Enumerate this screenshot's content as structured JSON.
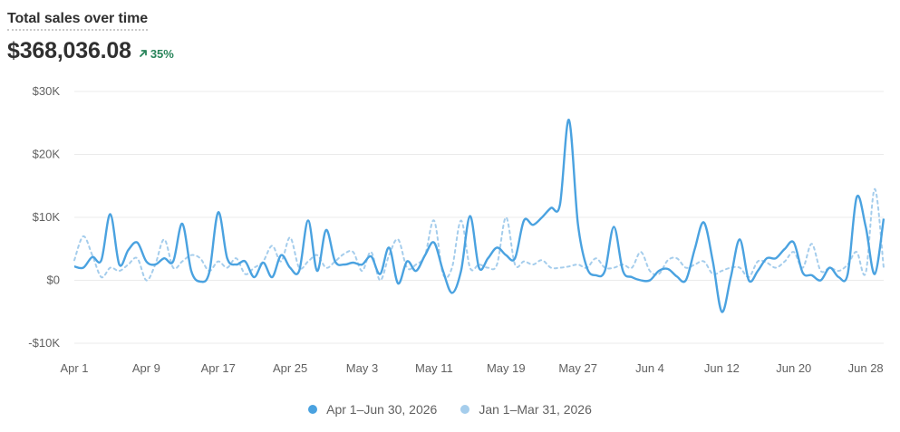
{
  "header": {
    "title": "Total sales over time",
    "total": "$368,036.08",
    "change": "35%",
    "change_icon": "arrow-up-right-icon",
    "change_color": "#29845a"
  },
  "legend": [
    {
      "label": "Apr 1–Jun 30, 2026",
      "color": "#4aa2e0"
    },
    {
      "label": "Jan 1–Mar 31, 2026",
      "color": "#a5cdec"
    }
  ],
  "chart_data": {
    "type": "line",
    "title": "Total sales over time",
    "ylim": [
      -10000,
      30000
    ],
    "y_ticks": [
      -10000,
      0,
      10000,
      20000,
      30000
    ],
    "y_tick_labels": [
      "-$10K",
      "$0",
      "$10K",
      "$20K",
      "$30K"
    ],
    "x_tick_labels": [
      "Apr 1",
      "Apr 9",
      "Apr 17",
      "Apr 25",
      "May 3",
      "May 11",
      "May 19",
      "May 27",
      "Jun 4",
      "Jun 12",
      "Jun 20",
      "Jun 28"
    ],
    "x_tick_index": [
      0,
      8,
      16,
      24,
      32,
      40,
      48,
      56,
      64,
      72,
      80,
      88
    ],
    "grid": true,
    "legend_position": "bottom-center",
    "series": [
      {
        "name": "Apr 1–Jun 30, 2026",
        "style": "solid",
        "color": "#4aa2e0",
        "values": [
          2200,
          2000,
          3700,
          3200,
          10500,
          2500,
          4800,
          6000,
          3000,
          2500,
          3500,
          3000,
          9000,
          1500,
          -200,
          1200,
          10800,
          3500,
          2500,
          3000,
          500,
          2800,
          500,
          4000,
          2000,
          1500,
          9500,
          1500,
          8000,
          3000,
          2500,
          2800,
          2500,
          3800,
          1000,
          5200,
          -500,
          3000,
          1500,
          4000,
          6000,
          1500,
          -2000,
          1500,
          10200,
          2000,
          3500,
          5200,
          4000,
          3500,
          9500,
          8800,
          10000,
          11500,
          12000,
          25500,
          9000,
          2000,
          800,
          1500,
          8500,
          1500,
          500,
          0,
          0,
          1500,
          1800,
          600,
          0,
          5000,
          9200,
          3000,
          -5000,
          500,
          6500,
          0,
          1500,
          3500,
          3500,
          5000,
          6000,
          1200,
          800,
          0,
          2000,
          500,
          1000,
          13200,
          8500,
          1000,
          9800
        ]
      },
      {
        "name": "Jan 1–Mar 31, 2026",
        "style": "dashed",
        "color": "#a5cdec",
        "values": [
          3200,
          7000,
          4000,
          500,
          2000,
          1500,
          2500,
          3500,
          0,
          2500,
          6500,
          2000,
          3000,
          4000,
          3500,
          1500,
          3000,
          2000,
          3500,
          1000,
          2000,
          3000,
          5500,
          3000,
          6800,
          2000,
          3000,
          4000,
          2000,
          3000,
          4200,
          4500,
          1500,
          4500,
          0,
          4000,
          6500,
          2000,
          2500,
          4000,
          9500,
          1000,
          2000,
          9500,
          2000,
          2500,
          2000,
          2500,
          10000,
          2500,
          3000,
          2500,
          3200,
          2000,
          2000,
          2200,
          2500,
          2000,
          3500,
          2000,
          2000,
          2500,
          2000,
          4500,
          1500,
          1000,
          3200,
          3500,
          2000,
          2500,
          3000,
          1000,
          1500,
          2000,
          2000,
          500,
          3000,
          2800,
          2000,
          3000,
          4500,
          2000,
          5800,
          1500,
          2000,
          1500,
          2500,
          4500,
          1200,
          14500,
          2000
        ]
      }
    ]
  }
}
